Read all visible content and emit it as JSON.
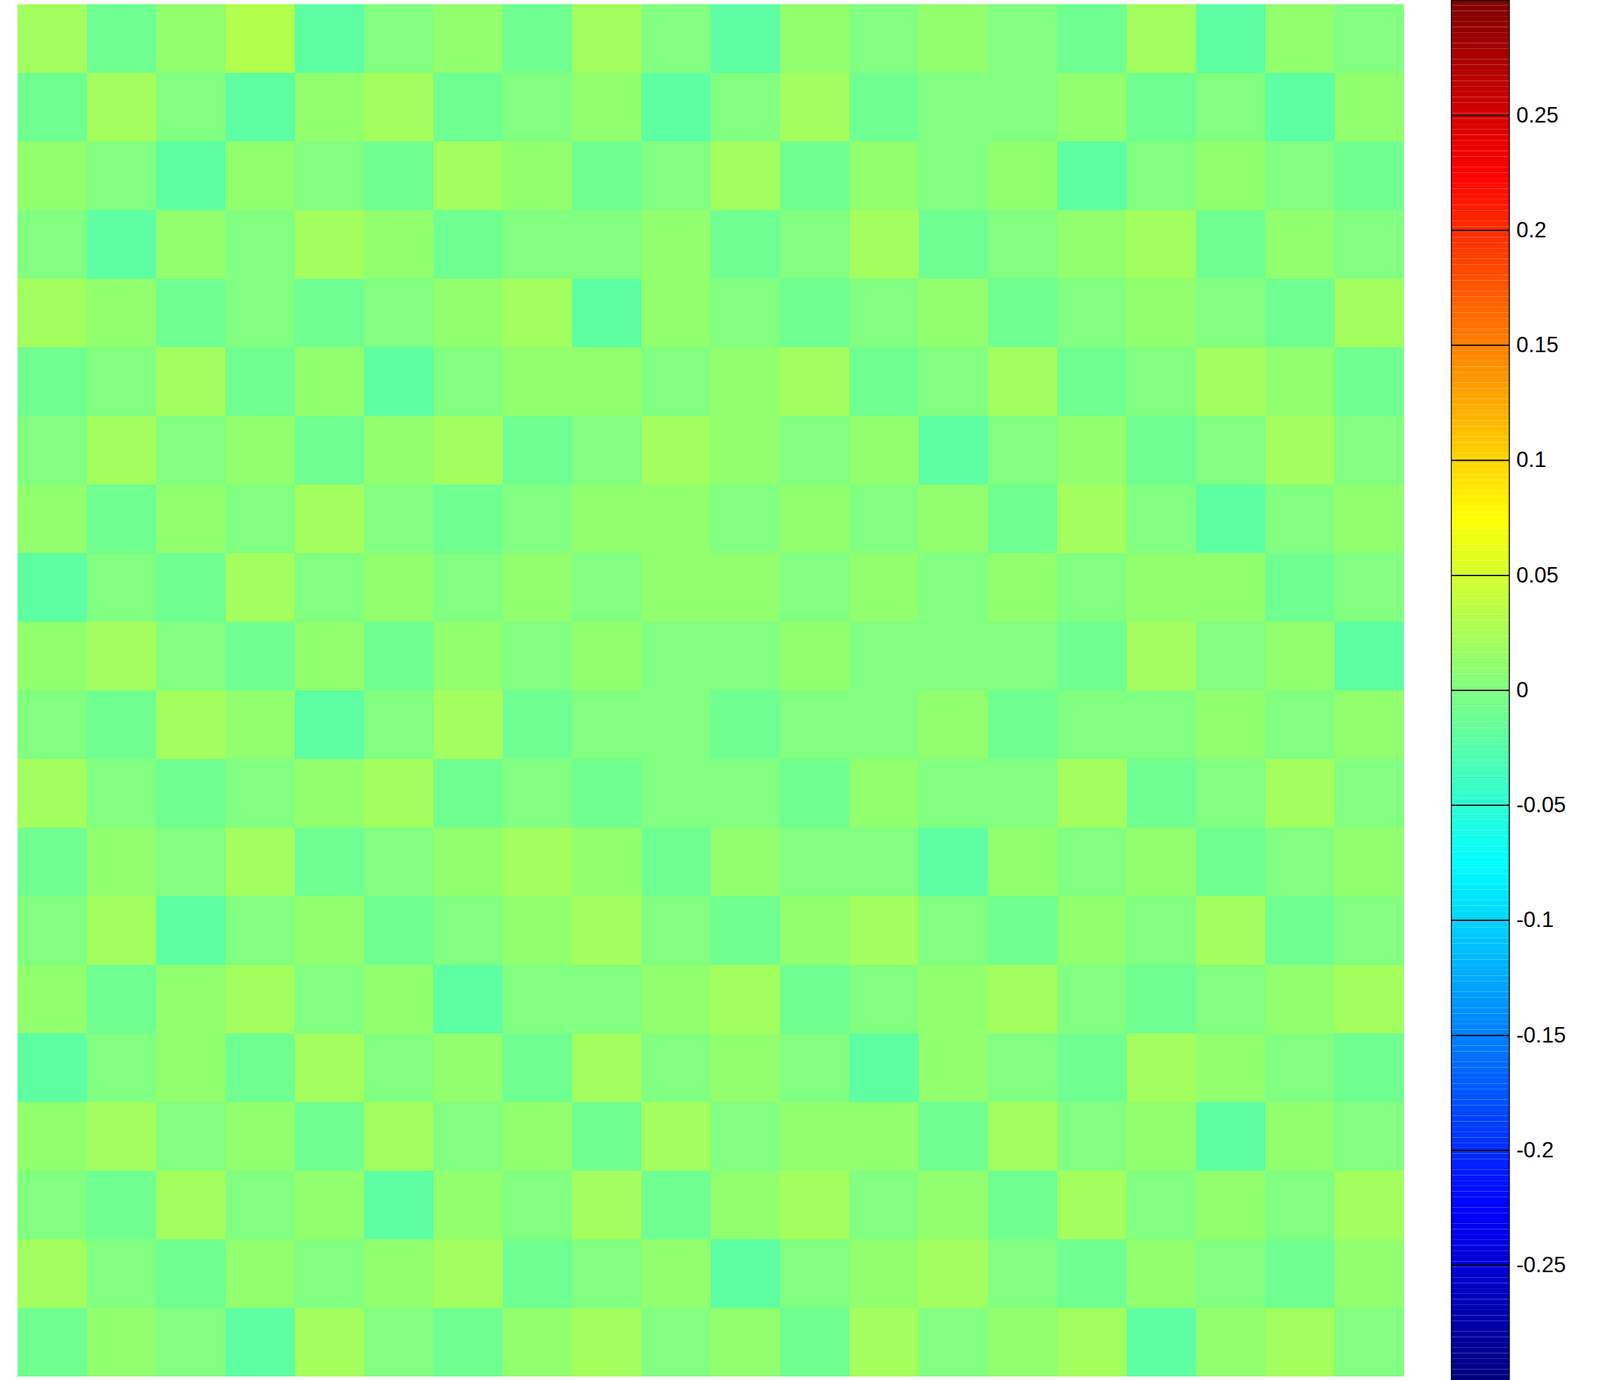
{
  "chart_data": {
    "type": "heatmap",
    "tick_labels": false,
    "cells": [
      [
        0.02,
        -0.01,
        0.01,
        0.03,
        -0.02,
        0.0,
        0.01,
        -0.01,
        0.02,
        0.0,
        -0.02,
        0.01,
        0.0,
        0.01,
        0.0,
        -0.01,
        0.02,
        -0.02,
        0.01,
        0.0
      ],
      [
        -0.01,
        0.02,
        0.0,
        -0.02,
        0.01,
        0.02,
        -0.01,
        0.0,
        0.01,
        -0.02,
        0.0,
        0.02,
        -0.01,
        0.0,
        0.0,
        0.01,
        -0.01,
        0.0,
        -0.02,
        0.01
      ],
      [
        0.01,
        0.0,
        -0.02,
        0.01,
        0.0,
        -0.01,
        0.02,
        0.01,
        -0.01,
        0.0,
        0.02,
        -0.01,
        0.01,
        0.0,
        0.01,
        -0.02,
        0.0,
        0.01,
        0.0,
        -0.01
      ],
      [
        0.0,
        -0.02,
        0.01,
        0.0,
        0.02,
        0.01,
        -0.01,
        0.0,
        0.0,
        0.01,
        -0.01,
        0.0,
        0.02,
        -0.01,
        0.0,
        0.01,
        0.02,
        -0.01,
        0.01,
        0.0
      ],
      [
        0.02,
        0.01,
        -0.01,
        0.0,
        -0.01,
        0.0,
        0.01,
        0.02,
        -0.02,
        0.01,
        0.0,
        -0.01,
        0.0,
        0.01,
        -0.01,
        0.0,
        0.01,
        0.0,
        -0.01,
        0.02
      ],
      [
        -0.01,
        0.0,
        0.02,
        -0.01,
        0.01,
        -0.02,
        0.0,
        0.01,
        0.01,
        0.0,
        0.01,
        0.02,
        -0.01,
        0.0,
        0.02,
        -0.01,
        0.0,
        0.02,
        0.01,
        -0.01
      ],
      [
        0.0,
        0.02,
        0.0,
        0.01,
        -0.01,
        0.01,
        0.02,
        -0.01,
        0.0,
        0.02,
        0.01,
        0.0,
        0.01,
        -0.02,
        0.0,
        0.01,
        -0.01,
        0.0,
        0.02,
        0.0
      ],
      [
        0.01,
        -0.01,
        0.01,
        0.0,
        0.02,
        0.0,
        -0.01,
        0.0,
        0.01,
        0.01,
        0.0,
        0.01,
        0.0,
        0.01,
        -0.01,
        0.02,
        0.0,
        -0.02,
        0.0,
        0.01
      ],
      [
        -0.02,
        0.0,
        -0.01,
        0.02,
        0.0,
        0.01,
        0.0,
        0.01,
        0.0,
        0.01,
        0.01,
        0.0,
        0.01,
        0.0,
        0.01,
        0.0,
        0.01,
        0.01,
        -0.01,
        0.0
      ],
      [
        0.01,
        0.02,
        0.0,
        -0.01,
        0.01,
        -0.01,
        0.01,
        0.0,
        0.01,
        0.0,
        0.0,
        0.01,
        0.0,
        0.0,
        0.0,
        -0.01,
        0.02,
        0.0,
        0.01,
        -0.02
      ],
      [
        0.0,
        -0.01,
        0.02,
        0.01,
        -0.02,
        0.0,
        0.02,
        -0.01,
        0.0,
        0.0,
        -0.01,
        0.0,
        0.0,
        0.01,
        -0.01,
        0.0,
        0.0,
        0.01,
        0.0,
        0.01
      ],
      [
        0.02,
        0.0,
        -0.01,
        0.0,
        0.01,
        0.02,
        -0.01,
        0.0,
        -0.01,
        0.0,
        0.0,
        -0.01,
        0.01,
        0.0,
        0.0,
        0.02,
        -0.01,
        0.0,
        0.02,
        0.0
      ],
      [
        -0.01,
        0.01,
        0.0,
        0.02,
        -0.01,
        0.0,
        0.01,
        0.02,
        0.01,
        -0.01,
        0.01,
        0.0,
        0.0,
        -0.02,
        0.01,
        0.0,
        0.01,
        -0.01,
        0.0,
        0.01
      ],
      [
        0.0,
        0.02,
        -0.02,
        0.0,
        0.01,
        -0.01,
        0.0,
        0.01,
        0.02,
        0.0,
        -0.01,
        0.01,
        0.02,
        0.0,
        -0.01,
        0.01,
        0.0,
        0.02,
        -0.01,
        0.0
      ],
      [
        0.01,
        -0.01,
        0.01,
        0.02,
        0.0,
        0.01,
        -0.02,
        0.0,
        0.0,
        0.01,
        0.02,
        -0.01,
        0.0,
        0.01,
        0.02,
        0.0,
        -0.01,
        0.0,
        0.01,
        0.02
      ],
      [
        -0.02,
        0.0,
        0.01,
        -0.01,
        0.02,
        0.0,
        0.01,
        -0.01,
        0.02,
        0.0,
        0.01,
        0.0,
        -0.02,
        0.01,
        0.0,
        -0.01,
        0.02,
        0.01,
        0.0,
        -0.01
      ],
      [
        0.01,
        0.02,
        0.0,
        0.01,
        -0.01,
        0.02,
        0.0,
        0.01,
        -0.01,
        0.02,
        0.0,
        0.01,
        0.01,
        -0.01,
        0.02,
        0.0,
        0.01,
        -0.02,
        0.01,
        0.0
      ],
      [
        0.0,
        -0.01,
        0.02,
        0.0,
        0.01,
        -0.02,
        0.01,
        0.0,
        0.02,
        -0.01,
        0.01,
        0.02,
        0.0,
        0.01,
        -0.01,
        0.02,
        0.0,
        0.01,
        0.0,
        0.02
      ],
      [
        0.02,
        0.0,
        -0.01,
        0.01,
        0.0,
        0.01,
        0.02,
        -0.01,
        0.0,
        0.01,
        -0.02,
        0.0,
        0.01,
        0.02,
        0.0,
        -0.01,
        0.01,
        0.0,
        -0.01,
        0.01
      ],
      [
        -0.01,
        0.01,
        0.0,
        -0.02,
        0.02,
        0.0,
        -0.01,
        0.01,
        0.02,
        0.0,
        0.01,
        -0.01,
        0.02,
        0.0,
        0.01,
        0.02,
        -0.02,
        0.01,
        0.02,
        0.0
      ]
    ],
    "colorbar": {
      "range": [
        -0.3,
        0.3
      ],
      "ticks": [
        -0.25,
        -0.2,
        -0.15,
        -0.1,
        -0.05,
        0,
        0.05,
        0.1,
        0.15,
        0.2,
        0.25
      ]
    }
  }
}
